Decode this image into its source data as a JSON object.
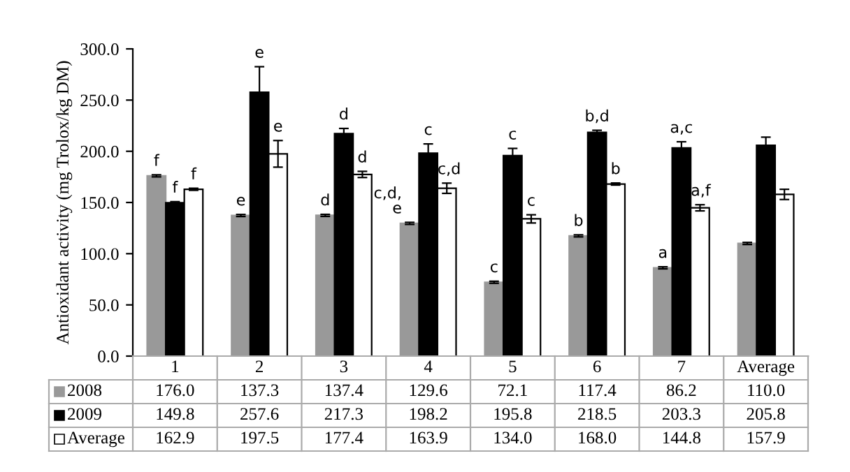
{
  "chart_data": {
    "type": "bar",
    "ylabel": "Antioxidant activity (mg Trolox/kg DM)",
    "categories": [
      "1",
      "2",
      "3",
      "4",
      "5",
      "6",
      "7",
      "Average"
    ],
    "series": [
      {
        "name": "2008",
        "color": "#999999",
        "values": [
          176.0,
          137.3,
          137.4,
          129.6,
          72.1,
          117.4,
          86.2,
          110.0
        ],
        "errors": [
          1,
          1,
          1,
          1,
          1,
          1,
          1,
          1
        ],
        "value_labels": [
          "176.0",
          "137.3",
          "137.4",
          "129.6",
          "72.1",
          "117.4",
          "86.2",
          "110.0"
        ]
      },
      {
        "name": "2009",
        "color": "#000000",
        "values": [
          149.8,
          257.6,
          217.3,
          198.2,
          195.8,
          218.5,
          203.3,
          205.8
        ],
        "errors": [
          1,
          25,
          5,
          9,
          7,
          2,
          6,
          8
        ],
        "value_labels": [
          "149.8",
          "257.6",
          "217.3",
          "198.2",
          "195.8",
          "218.5",
          "203.3",
          "205.8"
        ]
      },
      {
        "name": "Average",
        "color": "#ffffff",
        "values": [
          162.9,
          197.5,
          177.4,
          163.9,
          134.0,
          168.0,
          144.8,
          157.9
        ],
        "errors": [
          1,
          13,
          3,
          5,
          4,
          1,
          3,
          5
        ],
        "value_labels": [
          "162.9",
          "197.5",
          "177.4",
          "163.9",
          "134.0",
          "168.0",
          "144.8",
          "157.9"
        ]
      }
    ],
    "ylim": [
      0,
      300
    ],
    "yticks": [
      {
        "value": 0,
        "label": "0.0"
      },
      {
        "value": 50,
        "label": "50.0"
      },
      {
        "value": 100,
        "label": "100.0"
      },
      {
        "value": 150,
        "label": "150.0"
      },
      {
        "value": 200,
        "label": "200.0"
      },
      {
        "value": 250,
        "label": "250.0"
      },
      {
        "value": 300,
        "label": "300.0"
      }
    ],
    "legend": "bottom",
    "grid": false,
    "annotations": [
      "f",
      "f",
      "f",
      "e",
      "e",
      "e",
      "d",
      "d",
      "d",
      "c,d,\ne",
      "c",
      "c,d",
      "c",
      "c",
      "c",
      "b",
      "b,d",
      "b",
      "a",
      "a,c",
      "a,f"
    ]
  }
}
